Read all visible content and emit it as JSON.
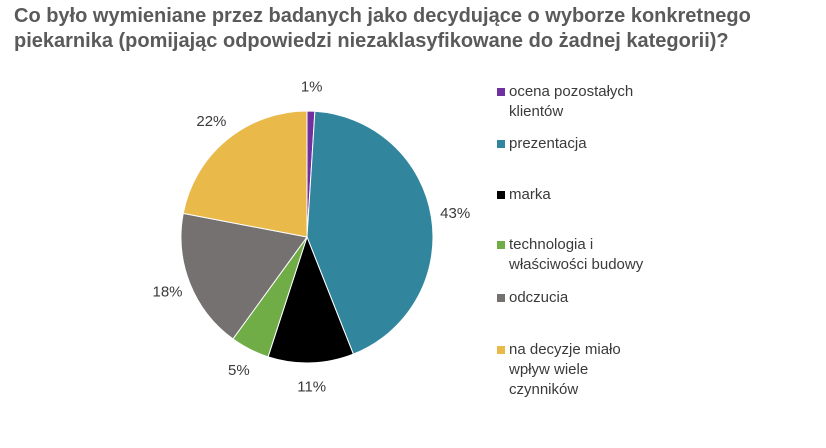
{
  "title": {
    "line1": "Co było wymieniane przez badanych jako decydujące o wyborze konkretnego",
    "line2": "piekarnika (pomijając odpowiedzi niezaklasyfikowane do żadnej kategorii)?"
  },
  "chart_data": {
    "type": "pie",
    "slices": [
      {
        "label": "ocena pozostałych klientów",
        "value": 1,
        "display": "1%",
        "color": "#7030a0"
      },
      {
        "label": "prezentacja",
        "value": 43,
        "display": "43%",
        "color": "#31859c"
      },
      {
        "label": "marka",
        "value": 11,
        "display": "11%",
        "color": "#000000"
      },
      {
        "label": "technologia i właściwości budowy",
        "value": 5,
        "display": "5%",
        "color": "#70ad47"
      },
      {
        "label": "odczucia",
        "value": 18,
        "display": "18%",
        "color": "#767171"
      },
      {
        "label": "na decyzje miało wpływ wiele czynników",
        "value": 22,
        "display": "22%",
        "color": "#e9b949"
      }
    ],
    "legend": {
      "position": "right",
      "items": [
        "ocena pozostałych\nklientów",
        "prezentacja",
        "marka",
        "technologia i\nwłaściwości budowy",
        "odczucia",
        "na decyzje miało\nwpływ wiele\nczynników"
      ]
    }
  }
}
